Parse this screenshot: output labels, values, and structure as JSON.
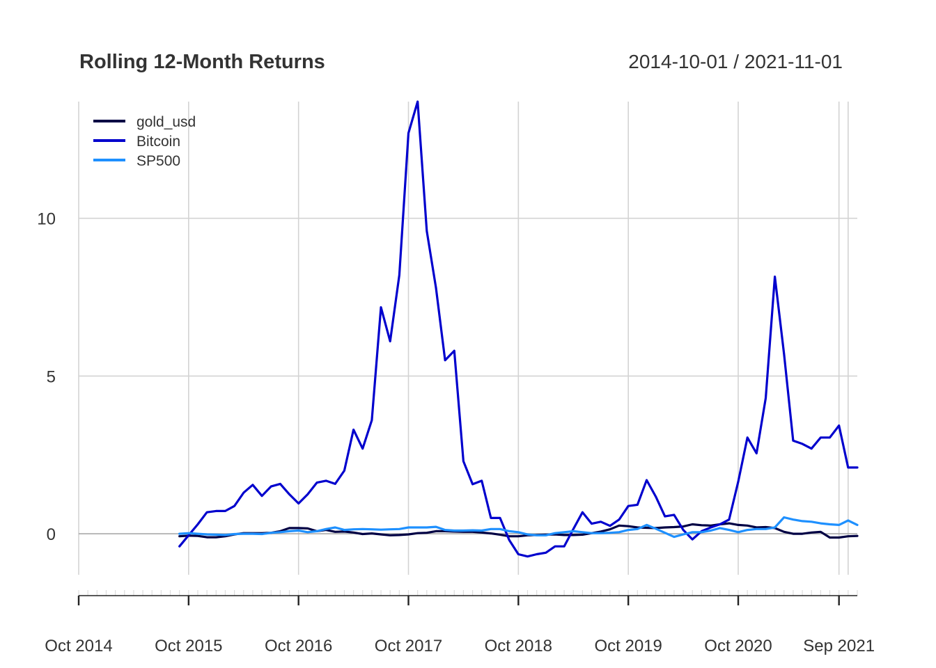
{
  "chart_data": {
    "type": "line",
    "title": "Rolling 12-Month Returns",
    "date_range": "2014-10-01 / 2021-11-01",
    "xlabel": "",
    "ylabel": "",
    "ylim": [
      -1.3,
      13.7
    ],
    "xlim": [
      "2014-10",
      "2021-11"
    ],
    "grid": true,
    "legend": {
      "placement": "top-left",
      "entries": [
        "gold_usd",
        "Bitcoin",
        "SP500"
      ]
    },
    "y_ticks": [
      {
        "value": 0,
        "label": "0"
      },
      {
        "value": 5,
        "label": "5"
      },
      {
        "value": 10,
        "label": "10"
      }
    ],
    "x_ticks": [
      {
        "date": "2014-10",
        "label": "Oct 2014"
      },
      {
        "date": "2015-10",
        "label": "Oct 2015"
      },
      {
        "date": "2016-10",
        "label": "Oct 2016"
      },
      {
        "date": "2017-10",
        "label": "Oct 2017"
      },
      {
        "date": "2018-10",
        "label": "Oct 2018"
      },
      {
        "date": "2019-10",
        "label": "Oct 2019"
      },
      {
        "date": "2020-10",
        "label": "Oct 2020"
      },
      {
        "date": "2021-09",
        "label": "Sep 2021"
      }
    ],
    "x": [
      "2015-09",
      "2015-10",
      "2015-11",
      "2015-12",
      "2016-01",
      "2016-02",
      "2016-03",
      "2016-04",
      "2016-05",
      "2016-06",
      "2016-07",
      "2016-08",
      "2016-09",
      "2016-10",
      "2016-11",
      "2016-12",
      "2017-01",
      "2017-02",
      "2017-03",
      "2017-04",
      "2017-05",
      "2017-06",
      "2017-07",
      "2017-08",
      "2017-09",
      "2017-10",
      "2017-11",
      "2017-12",
      "2018-01",
      "2018-02",
      "2018-03",
      "2018-04",
      "2018-05",
      "2018-06",
      "2018-07",
      "2018-08",
      "2018-09",
      "2018-10",
      "2018-11",
      "2018-12",
      "2019-01",
      "2019-02",
      "2019-03",
      "2019-04",
      "2019-05",
      "2019-06",
      "2019-07",
      "2019-08",
      "2019-09",
      "2019-10",
      "2019-11",
      "2019-12",
      "2020-01",
      "2020-02",
      "2020-03",
      "2020-04",
      "2020-05",
      "2020-06",
      "2020-07",
      "2020-08",
      "2020-09",
      "2020-10",
      "2020-11",
      "2020-12",
      "2021-01",
      "2021-02",
      "2021-03",
      "2021-04",
      "2021-05",
      "2021-06",
      "2021-07",
      "2021-08",
      "2021-09",
      "2021-10",
      "2021-11"
    ],
    "series": [
      {
        "name": "gold_usd",
        "color": "#000044",
        "values": [
          -0.08,
          -0.06,
          -0.07,
          -0.11,
          -0.11,
          -0.08,
          -0.02,
          0.02,
          0.02,
          0.02,
          0.03,
          0.08,
          0.18,
          0.18,
          0.17,
          0.08,
          0.12,
          0.06,
          0.07,
          0.04,
          -0.01,
          0.01,
          -0.02,
          -0.05,
          -0.04,
          -0.02,
          0.02,
          0.03,
          0.08,
          0.08,
          0.07,
          0.06,
          0.06,
          0.04,
          0.01,
          -0.03,
          -0.08,
          -0.08,
          -0.05,
          -0.04,
          -0.03,
          -0.02,
          -0.04,
          -0.04,
          -0.03,
          0.02,
          0.07,
          0.14,
          0.26,
          0.24,
          0.2,
          0.19,
          0.18,
          0.2,
          0.21,
          0.23,
          0.3,
          0.27,
          0.26,
          0.3,
          0.33,
          0.28,
          0.26,
          0.2,
          0.21,
          0.18,
          0.06,
          0.0,
          0.0,
          0.04,
          0.06,
          -0.12,
          -0.12,
          -0.08,
          -0.07
        ]
      },
      {
        "name": "Bitcoin",
        "color": "#0000cd",
        "values": [
          -0.4,
          -0.05,
          0.3,
          0.68,
          0.72,
          0.72,
          0.88,
          1.3,
          1.55,
          1.2,
          1.5,
          1.58,
          1.25,
          0.96,
          1.25,
          1.62,
          1.68,
          1.58,
          2.0,
          3.3,
          2.7,
          3.6,
          7.18,
          6.1,
          8.2,
          12.7,
          13.7,
          9.6,
          7.8,
          5.5,
          5.8,
          2.3,
          1.57,
          1.68,
          0.5,
          0.5,
          -0.2,
          -0.65,
          -0.72,
          -0.65,
          -0.6,
          -0.4,
          -0.4,
          0.15,
          0.68,
          0.32,
          0.38,
          0.25,
          0.45,
          0.88,
          0.92,
          1.7,
          1.18,
          0.55,
          0.6,
          0.12,
          -0.18,
          0.08,
          0.2,
          0.3,
          0.45,
          1.65,
          3.05,
          2.55,
          4.3,
          8.15,
          5.7,
          2.95,
          2.85,
          2.7,
          3.05,
          3.05,
          3.43,
          2.1,
          2.1
        ]
      },
      {
        "name": "SP500",
        "color": "#1e90ff",
        "values": [
          0.0,
          0.02,
          0.0,
          -0.02,
          -0.03,
          -0.04,
          -0.01,
          0.0,
          0.0,
          -0.01,
          0.03,
          0.05,
          0.08,
          0.1,
          0.05,
          0.08,
          0.15,
          0.2,
          0.12,
          0.14,
          0.15,
          0.14,
          0.13,
          0.14,
          0.15,
          0.2,
          0.2,
          0.2,
          0.22,
          0.12,
          0.1,
          0.1,
          0.11,
          0.1,
          0.15,
          0.15,
          0.08,
          0.05,
          -0.02,
          -0.05,
          -0.05,
          0.02,
          0.05,
          0.08,
          0.05,
          0.02,
          0.02,
          0.03,
          0.05,
          0.12,
          0.15,
          0.28,
          0.16,
          0.03,
          -0.1,
          -0.02,
          0.05,
          0.05,
          0.1,
          0.18,
          0.12,
          0.05,
          0.12,
          0.15,
          0.15,
          0.2,
          0.52,
          0.45,
          0.4,
          0.38,
          0.33,
          0.3,
          0.28,
          0.42,
          0.28
        ]
      }
    ]
  }
}
